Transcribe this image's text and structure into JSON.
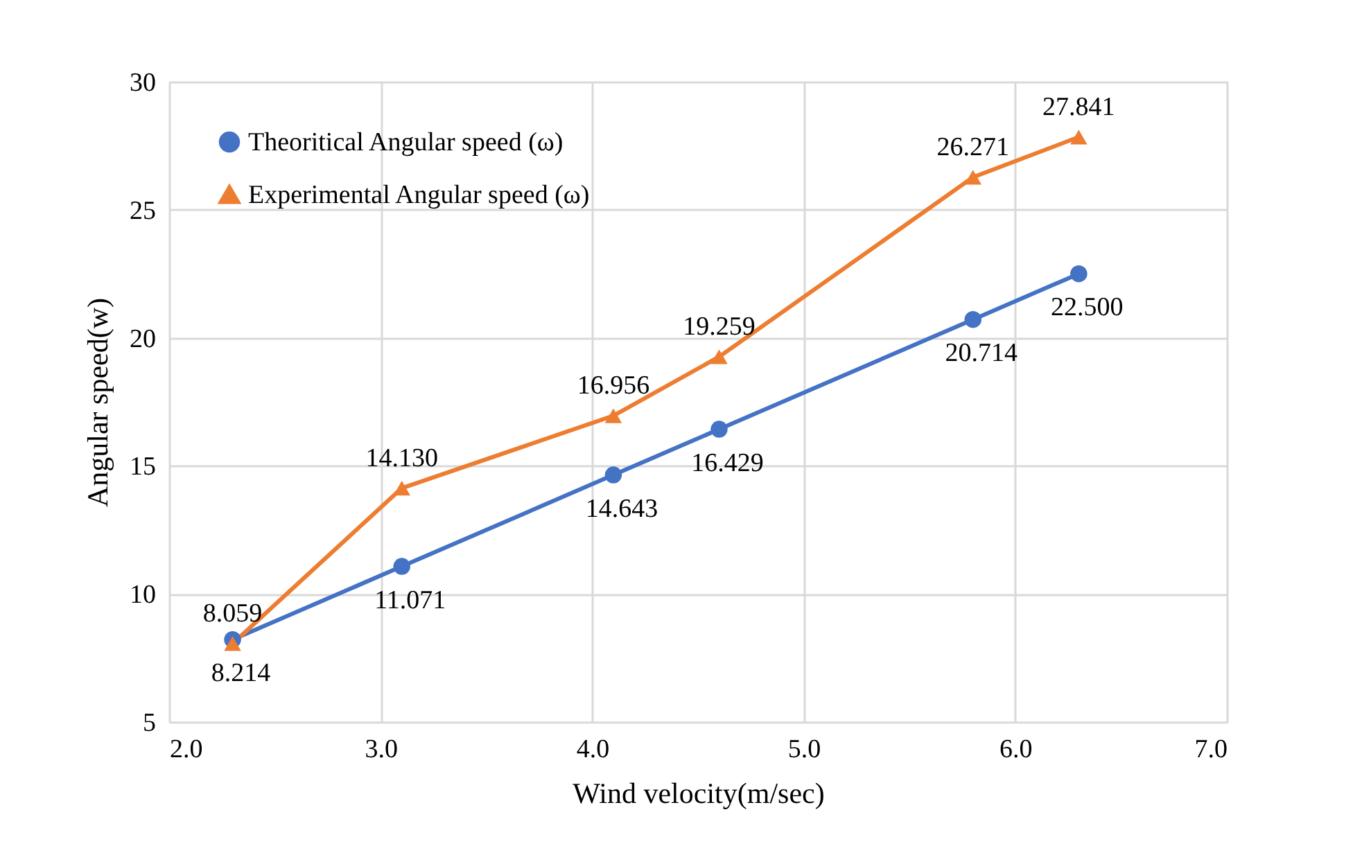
{
  "chart_data": {
    "type": "line",
    "xlabel": "Wind velocity(m/sec)",
    "ylabel": "Angular speed(w)",
    "x": [
      2.3,
      3.1,
      4.1,
      4.6,
      5.8,
      6.3
    ],
    "series": [
      {
        "name": "Theoritical Angular speed (ω)",
        "color": "#4472c4",
        "marker": "circle",
        "values": [
          8.214,
          11.071,
          14.643,
          16.429,
          20.714,
          22.5
        ],
        "value_labels": [
          "8.214",
          "11.071",
          "14.643",
          "16.429",
          "20.714",
          "22.500"
        ]
      },
      {
        "name": "Experimental Angular speed (ω)",
        "color": "#ed7d31",
        "marker": "triangle",
        "values": [
          8.059,
          14.13,
          16.956,
          19.259,
          26.271,
          27.841
        ],
        "value_labels": [
          "8.059",
          "14.130",
          "16.956",
          "19.259",
          "26.271",
          "27.841"
        ]
      }
    ],
    "xlim": [
      2.0,
      7.0
    ],
    "xticks": [
      {
        "value": 2,
        "label": "2.0"
      },
      {
        "value": 3,
        "label": "3.0"
      },
      {
        "value": 4,
        "label": "4.0"
      },
      {
        "value": 5,
        "label": "5.0"
      },
      {
        "value": 6,
        "label": "6.0"
      },
      {
        "value": 7,
        "label": "7.0"
      }
    ],
    "ylim": [
      5,
      30
    ],
    "yticks": [
      5,
      10,
      15,
      20,
      25,
      30
    ],
    "grid": true,
    "legend": "top left"
  }
}
